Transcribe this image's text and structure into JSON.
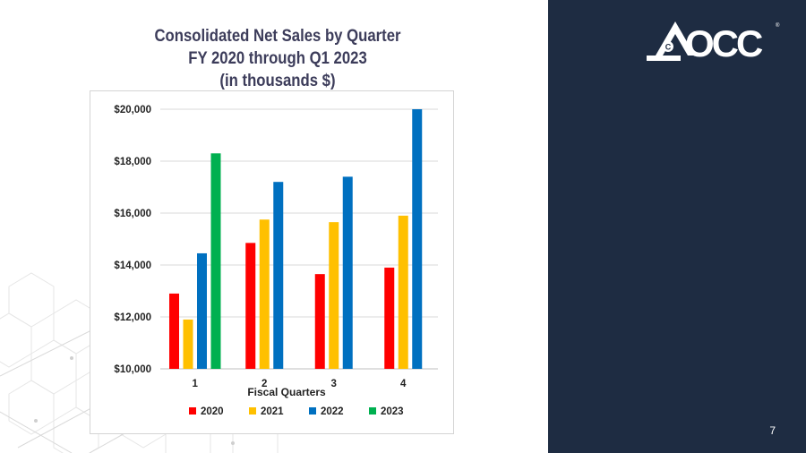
{
  "slide": {
    "page_number": "7",
    "brand_color": "#1e2c42"
  },
  "logo": {
    "text": "OCC",
    "color": "#ffffff"
  },
  "chart_data": {
    "type": "bar",
    "title": "Consolidated Net Sales by Quarter",
    "title_lines": [
      "Consolidated Net Sales by Quarter",
      "FY 2020 through Q1 2023",
      "(in thousands $)"
    ],
    "xlabel": "Fiscal Quarters",
    "ylabel": "",
    "categories": [
      "1",
      "2",
      "3",
      "4"
    ],
    "ylim": [
      10000,
      20000
    ],
    "yticks": [
      10000,
      12000,
      14000,
      16000,
      18000,
      20000
    ],
    "ytick_labels": [
      "$10,000",
      "$12,000",
      "$14,000",
      "$16,000",
      "$18,000",
      "$20,000"
    ],
    "grid": true,
    "legend_position": "bottom",
    "series": [
      {
        "name": "2020",
        "color": "#ff0000",
        "values": [
          12900,
          14850,
          13650,
          13900
        ]
      },
      {
        "name": "2021",
        "color": "#ffc000",
        "values": [
          11900,
          15750,
          15650,
          15900
        ]
      },
      {
        "name": "2022",
        "color": "#0070c0",
        "values": [
          14450,
          17200,
          17400,
          20000
        ]
      },
      {
        "name": "2023",
        "color": "#00b050",
        "values": [
          18300,
          null,
          null,
          null
        ]
      }
    ]
  }
}
